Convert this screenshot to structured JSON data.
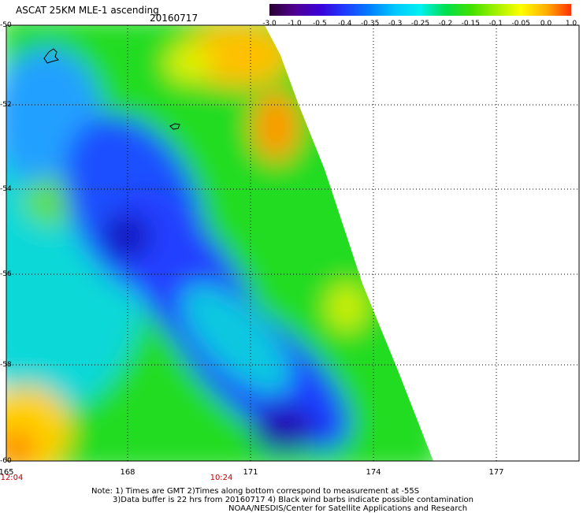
{
  "title": "ASCAT 25KM MLE-1 ascending",
  "date": "20160717",
  "colorbar": {
    "labels": [
      "-3.0",
      "-1.0",
      "-0.5",
      "-0.4",
      "-0.35",
      "-0.3",
      "-0.25",
      "-0.2",
      "-0.15",
      "-0.1",
      "-0.05",
      "0.0",
      "1.0"
    ],
    "colors": [
      "#2a0030",
      "#500090",
      "#3a00d8",
      "#1f3bff",
      "#0080ff",
      "#00c8ff",
      "#00f0f0",
      "#00e050",
      "#40e000",
      "#a0f000",
      "#ffff00",
      "#ffb000",
      "#ff3000"
    ]
  },
  "map": {
    "lat_labels": [
      "-50",
      "-52",
      "-54",
      "-56",
      "-58",
      "-60"
    ],
    "lon_labels": [
      "165",
      "168",
      "171",
      "174",
      "177"
    ],
    "time_labels": [
      "12:04",
      "10:24"
    ]
  },
  "notes": {
    "line1": "Note: 1) Times are GMT 2)Times along bottom correspond to measurement at -55S",
    "line2": "3)Data buffer is 22 hrs from 20160717 4) Black wind barbs indicate possible contamination",
    "line3": "NOAA/NESDIS/Center for Satellite Applications and Research"
  }
}
